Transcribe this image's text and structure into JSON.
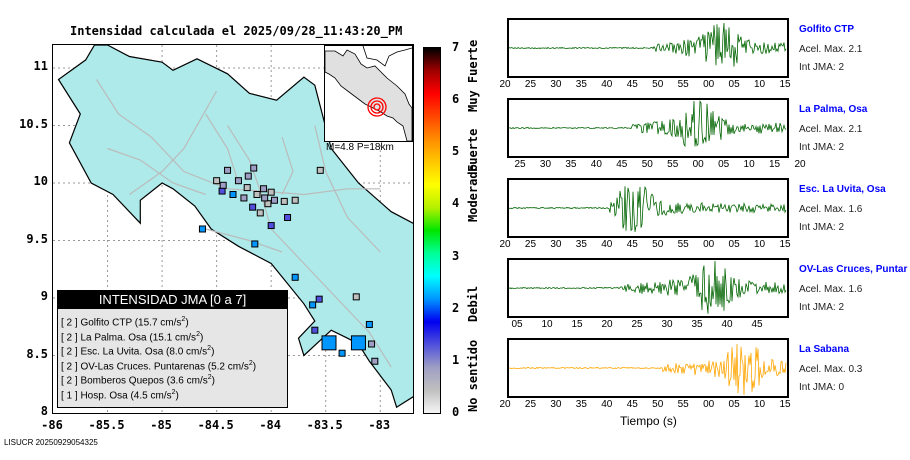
{
  "title": "Intensidad calculada el 2025/09/28_11:43:20_PM",
  "map": {
    "y_ticks": [
      "11",
      "10.5",
      "10",
      "9.5",
      "9",
      "8.5",
      "8"
    ],
    "x_ticks": [
      "-86",
      "-85.5",
      "-85",
      "-84.5",
      "-84",
      "-83.5",
      "-83"
    ],
    "lat_range": [
      8,
      11.2
    ],
    "lon_range": [
      -86,
      -82.7
    ],
    "land_color": "#aeeaea",
    "road_color": "#bbbbbb",
    "stations": [
      {
        "lon": -83.47,
        "lat": 8.61,
        "intensity": 2,
        "large": true
      },
      {
        "lon": -83.2,
        "lat": 8.61,
        "intensity": 2,
        "large": true
      },
      {
        "lon": -83.08,
        "lat": 8.6,
        "intensity": 1
      },
      {
        "lon": -83.35,
        "lat": 8.52,
        "intensity": 2
      },
      {
        "lon": -83.6,
        "lat": 8.72,
        "intensity": 1.5
      },
      {
        "lon": -83.56,
        "lat": 8.99,
        "intensity": 1.5
      },
      {
        "lon": -83.22,
        "lat": 9.01,
        "intensity": 0.6
      },
      {
        "lon": -83.1,
        "lat": 8.77,
        "intensity": 2
      },
      {
        "lon": -83.05,
        "lat": 8.45,
        "intensity": 0.8
      },
      {
        "lon": -83.62,
        "lat": 8.94,
        "intensity": 2
      },
      {
        "lon": -83.78,
        "lat": 9.18,
        "intensity": 2
      },
      {
        "lon": -84.15,
        "lat": 9.47,
        "intensity": 2
      },
      {
        "lon": -84.63,
        "lat": 9.6,
        "intensity": 2
      },
      {
        "lon": -84.45,
        "lat": 9.93,
        "intensity": 1.5
      },
      {
        "lon": -84.35,
        "lat": 9.9,
        "intensity": 2
      },
      {
        "lon": -84.4,
        "lat": 10.11,
        "intensity": 1
      },
      {
        "lon": -84.3,
        "lat": 10.02,
        "intensity": 1
      },
      {
        "lon": -84.22,
        "lat": 9.96,
        "intensity": 0.5
      },
      {
        "lon": -84.25,
        "lat": 9.87,
        "intensity": 0.8
      },
      {
        "lon": -84.13,
        "lat": 9.9,
        "intensity": 0.5
      },
      {
        "lon": -84.07,
        "lat": 9.95,
        "intensity": 0.7
      },
      {
        "lon": -84.0,
        "lat": 9.92,
        "intensity": 0.5
      },
      {
        "lon": -83.97,
        "lat": 9.85,
        "intensity": 0.8
      },
      {
        "lon": -84.03,
        "lat": 9.82,
        "intensity": 0.5
      },
      {
        "lon": -84.17,
        "lat": 9.79,
        "intensity": 1.2
      },
      {
        "lon": -84.1,
        "lat": 9.74,
        "intensity": 0.5
      },
      {
        "lon": -84.0,
        "lat": 9.63,
        "intensity": 1.2
      },
      {
        "lon": -83.88,
        "lat": 9.84,
        "intensity": 0.5
      },
      {
        "lon": -83.78,
        "lat": 9.85,
        "intensity": 0.6
      },
      {
        "lon": -84.21,
        "lat": 10.06,
        "intensity": 0.8
      },
      {
        "lon": -84.16,
        "lat": 10.13,
        "intensity": 0.7
      },
      {
        "lon": -84.06,
        "lat": 9.87,
        "intensity": 0.7
      },
      {
        "lon": -83.85,
        "lat": 9.7,
        "intensity": 1.2
      },
      {
        "lon": -83.55,
        "lat": 10.11,
        "intensity": 0.5
      },
      {
        "lon": -84.5,
        "lat": 10.02,
        "intensity": 0.6
      },
      {
        "lon": -84.44,
        "lat": 9.98,
        "intensity": 0.9
      }
    ]
  },
  "legend": {
    "title": "INTENSIDAD JMA [0 a 7]",
    "entries": [
      {
        "intensity": "[ 2 ]",
        "station": "Golfito CTP",
        "pga": "(15.7 cm/s",
        "sup": "2",
        "close": ")"
      },
      {
        "intensity": "[ 2 ]",
        "station": "La Palma. Osa",
        "pga": "(15.1 cm/s",
        "sup": "2",
        "close": ")"
      },
      {
        "intensity": "[ 2 ]",
        "station": "Esc. La Uvita. Osa",
        "pga": "(8.0 cm/s",
        "sup": "2",
        "close": ")"
      },
      {
        "intensity": "[ 2 ]",
        "station": "OV-Las Cruces. Puntarenas",
        "pga": "(5.2 cm/s",
        "sup": "2",
        "close": ")"
      },
      {
        "intensity": "[ 2 ]",
        "station": "Bomberos Quepos",
        "pga": "(3.6 cm/s",
        "sup": "2",
        "close": ")"
      },
      {
        "intensity": "[ 1 ]",
        "station": "Hosp. Osa",
        "pga": "(4.5 cm/s",
        "sup": "2",
        "close": ")"
      }
    ]
  },
  "inset": {
    "label": "M=4.8 P=18km",
    "epicenter_color": "#ff0000"
  },
  "colorbar": {
    "ticks": [
      "0",
      "1",
      "2",
      "3",
      "4",
      "5",
      "6",
      "7"
    ],
    "labels": [
      "No sentido",
      "Debil",
      "Moderado",
      "Fuerte",
      "Muy Fuerte"
    ],
    "stops": [
      "#f5f5f5",
      "#c0c0c0",
      "#9e9ec4",
      "#5050dc",
      "#0000f0",
      "#0096ff",
      "#00ffff",
      "#00ff96",
      "#00e600",
      "#b4f000",
      "#ffff00",
      "#ffc800",
      "#ff8c00",
      "#ff4600",
      "#ff0000",
      "#a00000",
      "#000000"
    ]
  },
  "traces": [
    {
      "station": "Golfito CTP",
      "acel": "Acel. Max. 2.1",
      "int": "Int JMA: 2",
      "color": "#006400",
      "ticks": [
        "20",
        "25",
        "30",
        "35",
        "40",
        "45",
        "50",
        "55",
        "00",
        "05",
        "10",
        "15"
      ],
      "tick_pos": "below",
      "onset": 0.52,
      "peak": 0.76
    },
    {
      "station": "La Palma, Osa",
      "acel": "Acel. Max. 2.1",
      "int": "Int JMA: 2",
      "color": "#006400",
      "ticks": [
        "25",
        "30",
        "35",
        "40",
        "45",
        "50",
        "55",
        "00",
        "05",
        "10",
        "15",
        "20"
      ],
      "tick_pos": "below",
      "onset": 0.44,
      "peak": 0.69
    },
    {
      "station": "Esc. La Uvita, Osa",
      "acel": "Acel. Max. 1.6",
      "int": "Int JMA: 2",
      "color": "#006400",
      "ticks": [
        "20",
        "25",
        "30",
        "35",
        "40",
        "45",
        "50",
        "55",
        "00",
        "05",
        "10",
        "15"
      ],
      "tick_pos": "below",
      "onset": 0.36,
      "peak": 0.45
    },
    {
      "station": "OV-Las Cruces, Puntar",
      "acel": "Acel. Max. 1.6",
      "int": "Int JMA: 2",
      "color": "#006400",
      "ticks": [
        "05",
        "10",
        "15",
        "20",
        "25",
        "30",
        "35",
        "40",
        "45"
      ],
      "tick_pos": "below",
      "onset": 0.4,
      "peak": 0.74
    },
    {
      "station": "La Sabana",
      "acel": "Acel. Max. 0.3",
      "int": "Int JMA: 0",
      "color": "#ffa500",
      "ticks": [
        "20",
        "25",
        "30",
        "35",
        "40",
        "45",
        "50",
        "55",
        "00",
        "05",
        "10",
        "15"
      ],
      "tick_pos": "below",
      "onset": 0.55,
      "peak": 0.85
    }
  ],
  "xlabel": "Tiempo (s)",
  "footer": "LISUCR 20250929054325"
}
